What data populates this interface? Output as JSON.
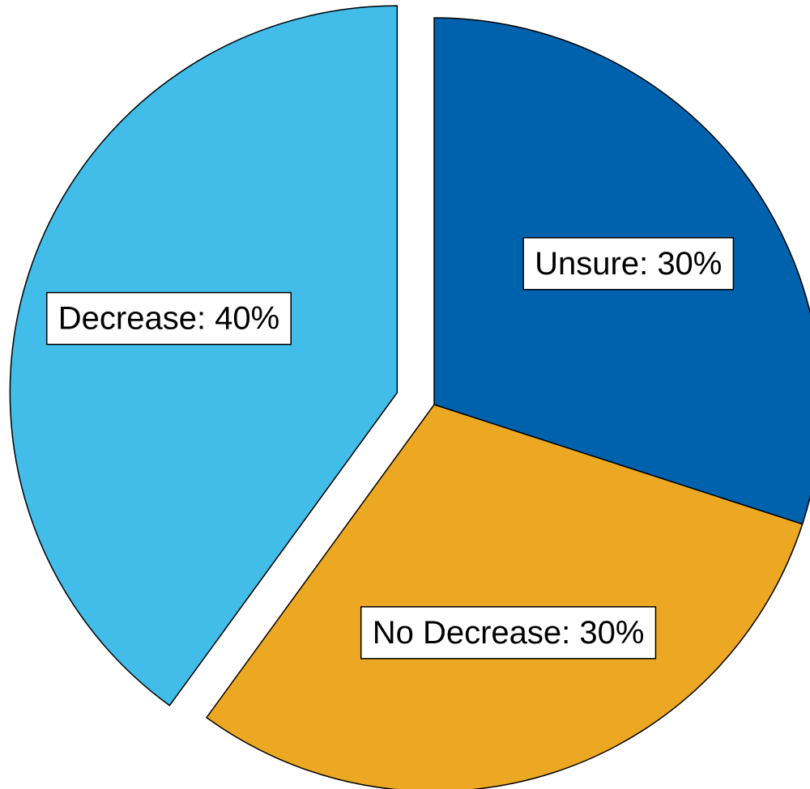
{
  "chart_data": {
    "type": "pie",
    "title": "",
    "slices": [
      {
        "label": "Unsure",
        "display": "Unsure: 30%",
        "value": 30,
        "color": "#0062AD"
      },
      {
        "label": "No Decrease",
        "display": "No Decrease: 30%",
        "value": 30,
        "color": "#EDA823"
      },
      {
        "label": "Decrease",
        "display": "Decrease: 40%",
        "value": 40,
        "color": "#42BCE8"
      }
    ],
    "exploded": [
      "Decrease"
    ],
    "start_angle": "12 o'clock",
    "direction": "clockwise",
    "legend": "none",
    "outline_color": "#000000"
  }
}
